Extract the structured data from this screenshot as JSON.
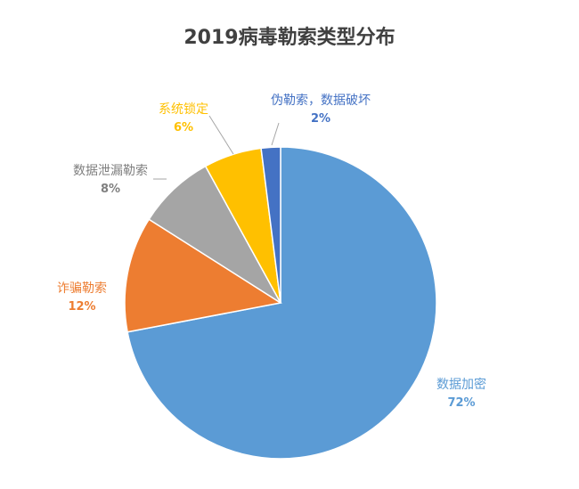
{
  "chart_data": {
    "type": "pie",
    "title": "2019病毒勒索类型分布",
    "slices": [
      {
        "label": "数据加密",
        "value": 72,
        "display": "72%",
        "color": "#5b9bd5"
      },
      {
        "label": "诈骗勒索",
        "value": 12,
        "display": "12%",
        "color": "#ed7d31"
      },
      {
        "label": "数据泄漏勒索",
        "value": 8,
        "display": "8%",
        "color": "#a5a5a5"
      },
      {
        "label": "系统锁定",
        "value": 6,
        "display": "6%",
        "color": "#ffc000"
      },
      {
        "label": "伪勒索，数据破坏",
        "value": 2,
        "display": "2%",
        "color": "#4472c4"
      }
    ],
    "start_angle_deg": 0,
    "direction": "clockwise",
    "legend": "none"
  }
}
